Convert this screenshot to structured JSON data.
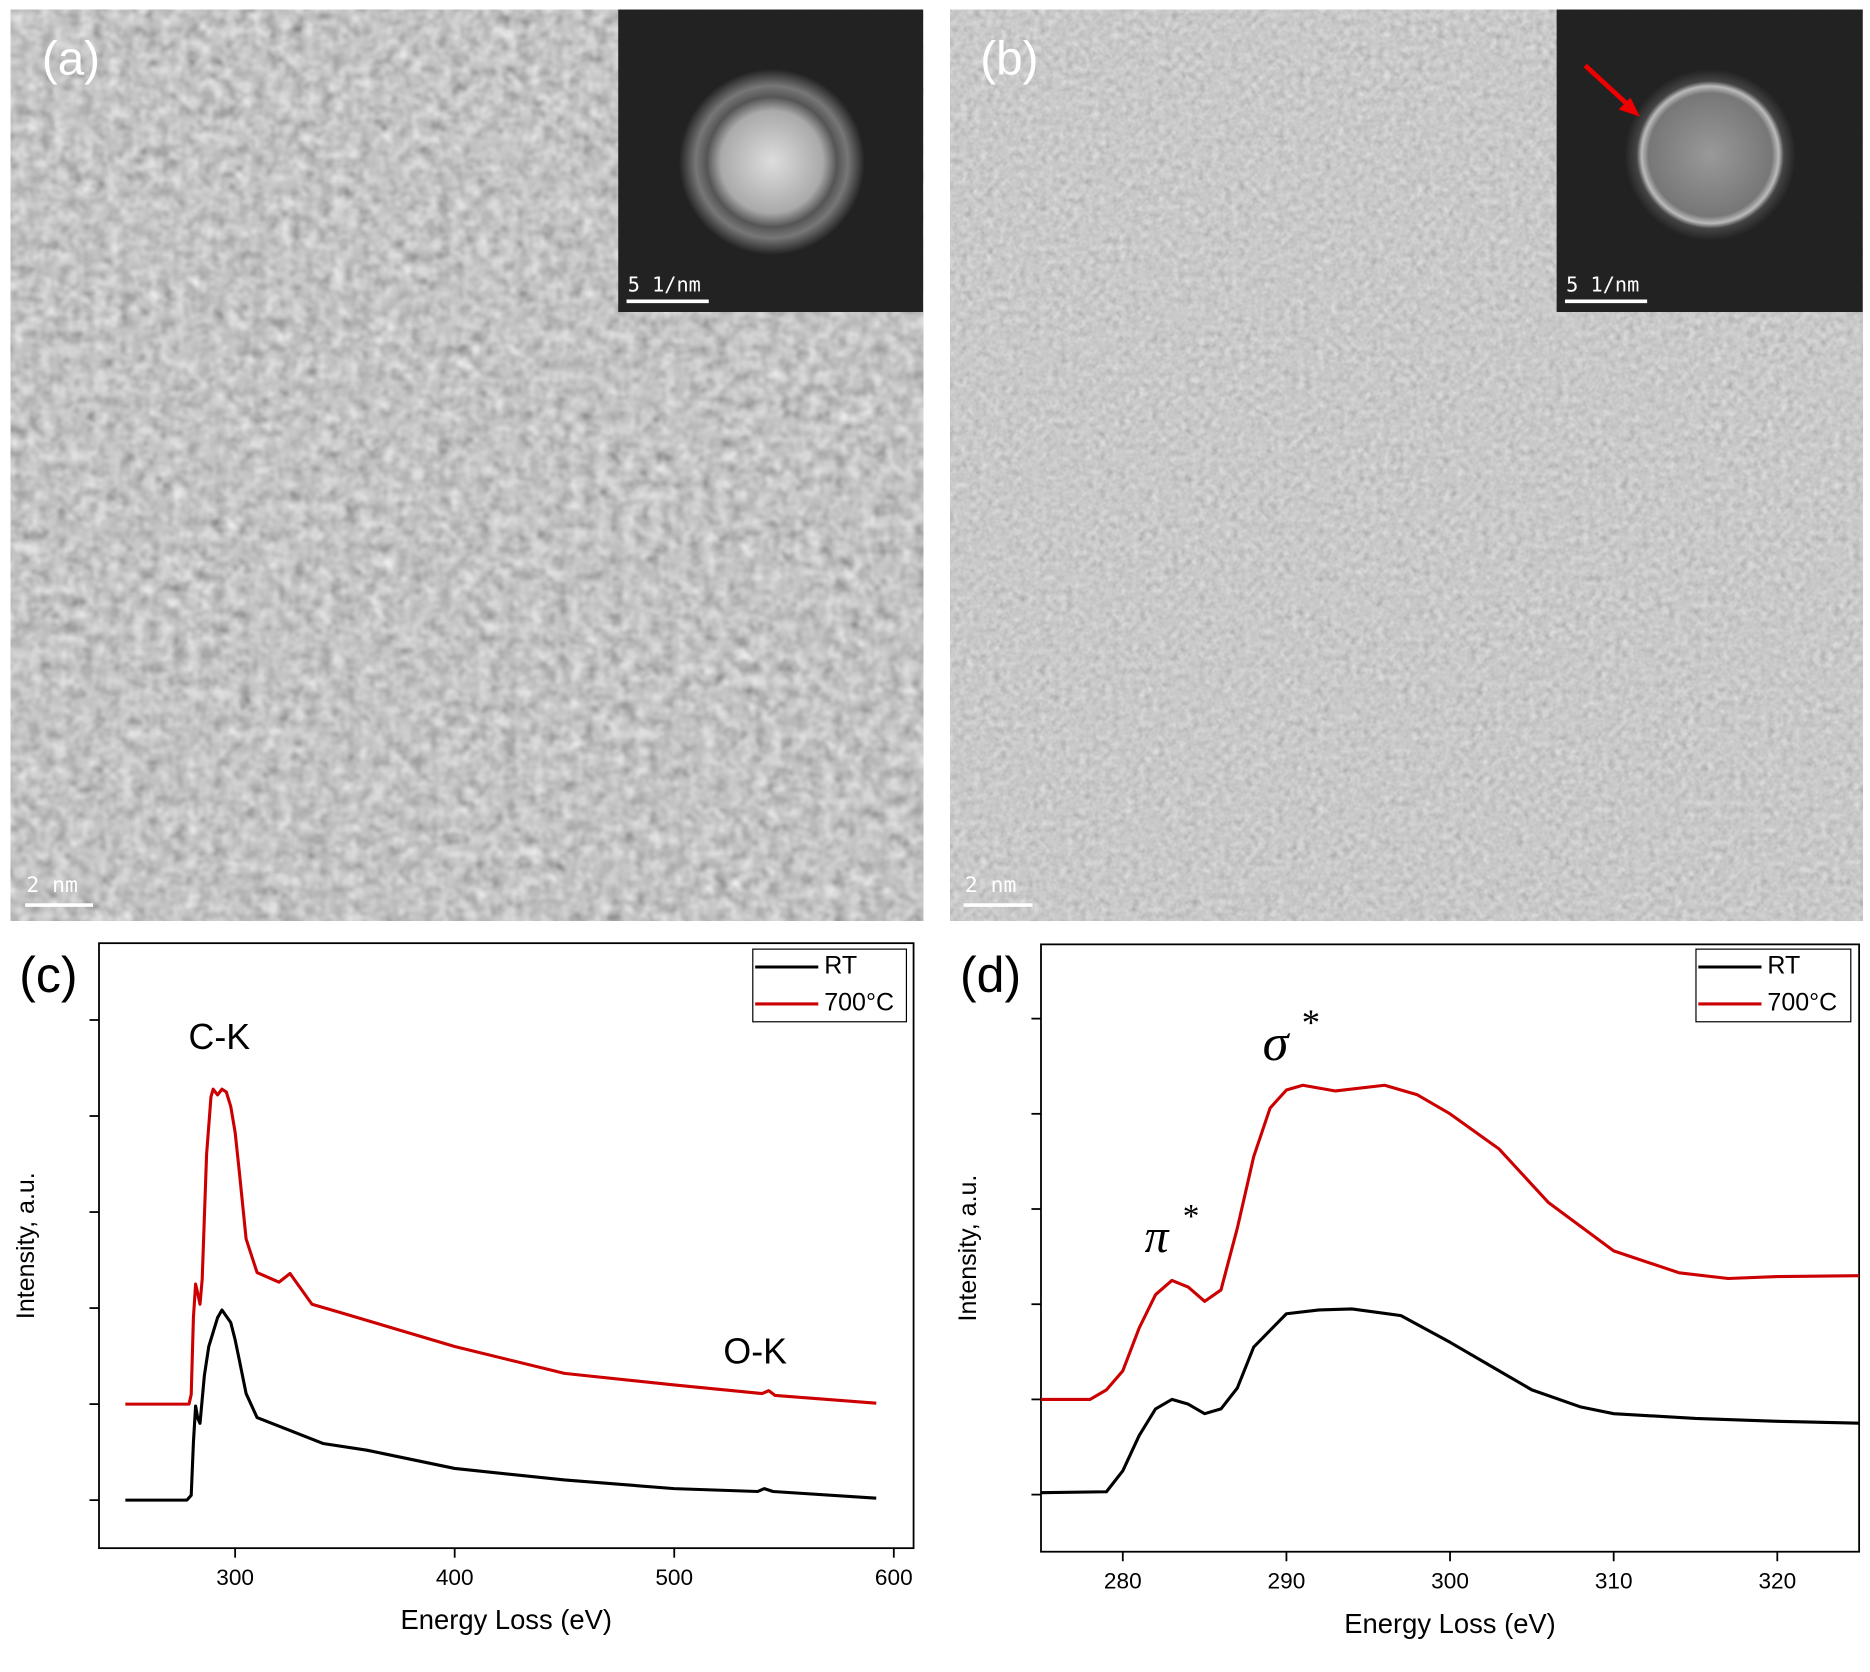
{
  "panels": [
    {
      "label": "(a)",
      "scale_bar": "2 nm",
      "inset_scale_bar": "5 1/nm"
    },
    {
      "label": "(b)",
      "scale_bar": "2 nm",
      "inset_scale_bar": "5 1/nm"
    }
  ],
  "chart_data": [
    {
      "type": "line",
      "panel_label": "(c)",
      "x_label": "Energy Loss (eV)",
      "y_label": "Intensity, a.u.",
      "xlim": [
        238,
        609
      ],
      "xticks": [
        300,
        400,
        500,
        600
      ],
      "ylim": [
        -0.5,
        5.8
      ],
      "yticks": [
        0,
        1,
        2,
        3,
        4,
        5
      ],
      "ytick_labels": false,
      "annotations": [
        {
          "text": "C-K"
        },
        {
          "text": "O-K"
        }
      ],
      "series": [
        {
          "name": "RT",
          "color": "#000000",
          "x": [
            250,
            278,
            280,
            281,
            282,
            283,
            284,
            286,
            288,
            292,
            294,
            298,
            300,
            302,
            305,
            310,
            320,
            330,
            340,
            360,
            400,
            450,
            500,
            538,
            541,
            545,
            592
          ],
          "values": [
            0,
            0,
            0.05,
            0.6,
            0.98,
            0.85,
            0.8,
            1.3,
            1.6,
            1.9,
            1.98,
            1.85,
            1.67,
            1.45,
            1.11,
            0.86,
            0.77,
            0.68,
            0.59,
            0.52,
            0.33,
            0.21,
            0.12,
            0.09,
            0.12,
            0.09,
            0.02
          ]
        },
        {
          "name": "700°C",
          "color": "#cc0000",
          "x": [
            250,
            279,
            280,
            281,
            282,
            283,
            284,
            285,
            287,
            289,
            290,
            292,
            294,
            296,
            298,
            300,
            302,
            305,
            310,
            320,
            325,
            335,
            350,
            400,
            450,
            500,
            540,
            543,
            546,
            592
          ],
          "values": [
            1.0,
            1.0,
            1.1,
            1.9,
            2.25,
            2.15,
            2.04,
            2.3,
            3.6,
            4.2,
            4.28,
            4.22,
            4.28,
            4.25,
            4.1,
            3.83,
            3.4,
            2.72,
            2.37,
            2.27,
            2.36,
            2.04,
            1.94,
            1.6,
            1.32,
            1.2,
            1.11,
            1.14,
            1.09,
            1.01
          ]
        }
      ]
    },
    {
      "type": "line",
      "panel_label": "(d)",
      "x_label": "Energy Loss (eV)",
      "y_label": "Intensity, a.u.",
      "xlim": [
        275,
        325
      ],
      "xticks": [
        280,
        290,
        300,
        310,
        320
      ],
      "ylim": [
        -0.6,
        5.78
      ],
      "yticks": [
        0,
        1,
        2,
        3,
        4,
        5
      ],
      "ytick_labels": false,
      "annotations": [
        {
          "text": "π",
          "sup": "*"
        },
        {
          "text": "σ",
          "sup": "*"
        }
      ],
      "series": [
        {
          "name": "RT",
          "color": "#000000",
          "x": [
            275,
            279,
            280,
            281,
            282,
            283,
            284,
            285,
            286,
            287,
            288,
            290,
            292,
            294,
            297,
            300,
            303,
            305,
            308,
            310,
            315,
            320,
            325
          ],
          "values": [
            0.02,
            0.03,
            0.25,
            0.62,
            0.9,
            1.0,
            0.95,
            0.85,
            0.9,
            1.12,
            1.55,
            1.9,
            1.94,
            1.95,
            1.88,
            1.6,
            1.3,
            1.1,
            0.92,
            0.85,
            0.8,
            0.77,
            0.75
          ]
        },
        {
          "name": "700°C",
          "color": "#cc0000",
          "x": [
            275,
            278,
            279,
            280,
            281,
            282,
            283,
            284,
            285,
            286,
            287,
            288,
            289,
            290,
            291,
            293,
            296,
            298,
            300,
            303,
            306,
            310,
            314,
            317,
            320,
            325
          ],
          "values": [
            1.0,
            1.0,
            1.1,
            1.3,
            1.75,
            2.1,
            2.25,
            2.18,
            2.03,
            2.15,
            2.8,
            3.55,
            4.06,
            4.25,
            4.3,
            4.24,
            4.3,
            4.2,
            4.0,
            3.63,
            3.07,
            2.56,
            2.33,
            2.27,
            2.29,
            2.3
          ]
        }
      ]
    }
  ]
}
